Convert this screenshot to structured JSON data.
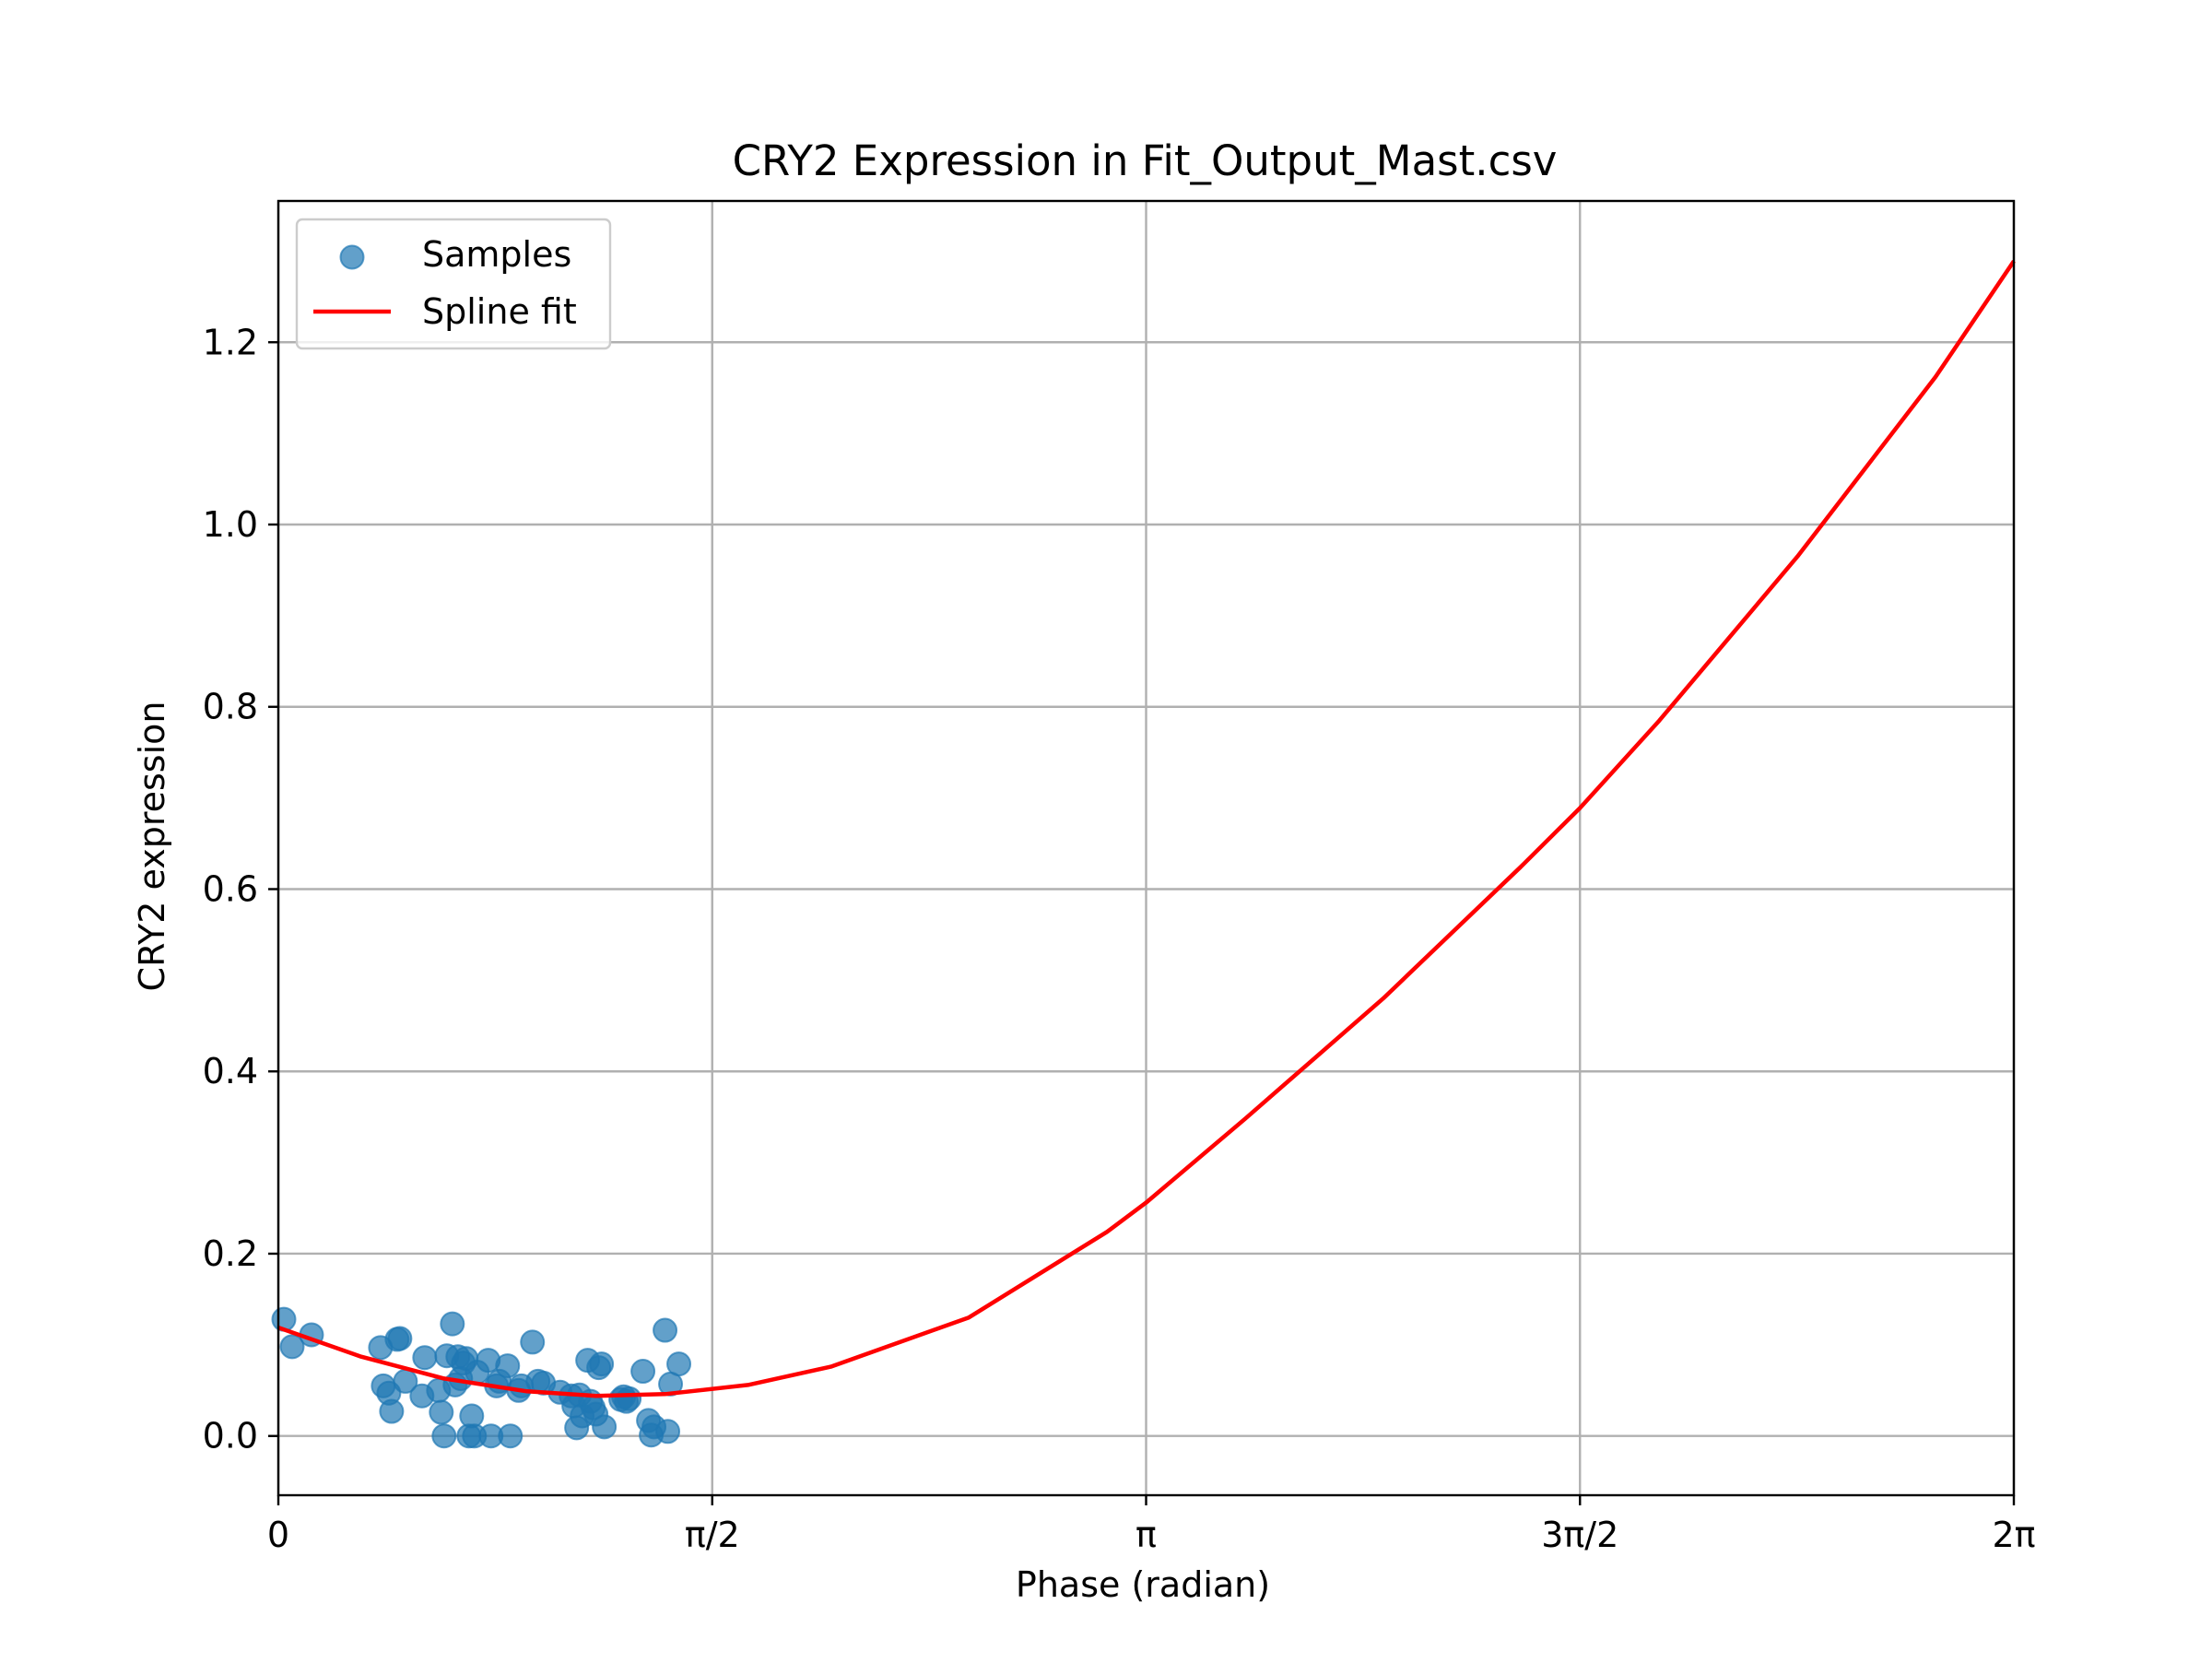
{
  "chart_data": {
    "type": "scatter",
    "title": "CRY2 Expression in Fit_Output_Mast.csv",
    "xlabel": "Phase (radian)",
    "ylabel": "CRY2 expression",
    "xlim": [
      0,
      6.2832
    ],
    "ylim": [
      -0.065,
      1.355
    ],
    "grid": true,
    "legend_position": "upper-left",
    "x_ticks": [
      {
        "value": 0,
        "label": "0"
      },
      {
        "value": 1.5708,
        "label": "π/2"
      },
      {
        "value": 3.1416,
        "label": "π"
      },
      {
        "value": 4.7124,
        "label": "3π/2"
      },
      {
        "value": 6.2832,
        "label": "2π"
      }
    ],
    "y_ticks": [
      {
        "value": 0.0,
        "label": "0.0"
      },
      {
        "value": 0.2,
        "label": "0.2"
      },
      {
        "value": 0.4,
        "label": "0.4"
      },
      {
        "value": 0.6,
        "label": "0.6"
      },
      {
        "value": 0.8,
        "label": "0.8"
      },
      {
        "value": 1.0,
        "label": "1.0"
      },
      {
        "value": 1.2,
        "label": "1.2"
      }
    ],
    "series": [
      {
        "name": "Samples",
        "kind": "scatter",
        "color": "#1f77b4",
        "opacity": 0.7,
        "points": [
          [
            0.02,
            0.128
          ],
          [
            0.05,
            0.098
          ],
          [
            0.12,
            0.111
          ],
          [
            0.37,
            0.097
          ],
          [
            0.38,
            0.055
          ],
          [
            0.4,
            0.047
          ],
          [
            0.41,
            0.027
          ],
          [
            0.43,
            0.106
          ],
          [
            0.44,
            0.107
          ],
          [
            0.46,
            0.06
          ],
          [
            0.52,
            0.044
          ],
          [
            0.53,
            0.086
          ],
          [
            0.58,
            0.05
          ],
          [
            0.59,
            0.026
          ],
          [
            0.6,
            0.0
          ],
          [
            0.61,
            0.088
          ],
          [
            0.63,
            0.123
          ],
          [
            0.64,
            0.056
          ],
          [
            0.65,
            0.087
          ],
          [
            0.66,
            0.063
          ],
          [
            0.67,
            0.08
          ],
          [
            0.68,
            0.085
          ],
          [
            0.69,
            0.0
          ],
          [
            0.7,
            0.022
          ],
          [
            0.71,
            0.0
          ],
          [
            0.72,
            0.07
          ],
          [
            0.76,
            0.083
          ],
          [
            0.77,
            0.0
          ],
          [
            0.79,
            0.055
          ],
          [
            0.8,
            0.06
          ],
          [
            0.83,
            0.077
          ],
          [
            0.84,
            0.0
          ],
          [
            0.87,
            0.05
          ],
          [
            0.88,
            0.055
          ],
          [
            0.92,
            0.103
          ],
          [
            0.94,
            0.06
          ],
          [
            0.96,
            0.058
          ],
          [
            1.02,
            0.048
          ],
          [
            1.06,
            0.044
          ],
          [
            1.07,
            0.033
          ],
          [
            1.08,
            0.009
          ],
          [
            1.09,
            0.045
          ],
          [
            1.1,
            0.022
          ],
          [
            1.12,
            0.083
          ],
          [
            1.13,
            0.038
          ],
          [
            1.14,
            0.031
          ],
          [
            1.15,
            0.024
          ],
          [
            1.16,
            0.075
          ],
          [
            1.17,
            0.079
          ],
          [
            1.18,
            0.01
          ],
          [
            1.24,
            0.04
          ],
          [
            1.25,
            0.043
          ],
          [
            1.26,
            0.038
          ],
          [
            1.27,
            0.041
          ],
          [
            1.32,
            0.071
          ],
          [
            1.34,
            0.017
          ],
          [
            1.35,
            0.001
          ],
          [
            1.36,
            0.01
          ],
          [
            1.4,
            0.116
          ],
          [
            1.41,
            0.005
          ],
          [
            1.42,
            0.057
          ],
          [
            1.45,
            0.079
          ]
        ]
      },
      {
        "name": "Spline fit",
        "kind": "line",
        "color": "#ff0000",
        "points": [
          [
            0.0,
            0.119
          ],
          [
            0.3,
            0.087
          ],
          [
            0.6,
            0.063
          ],
          [
            0.9,
            0.049
          ],
          [
            1.15,
            0.044
          ],
          [
            1.4,
            0.046
          ],
          [
            1.7,
            0.056
          ],
          [
            2.0,
            0.076
          ],
          [
            2.5,
            0.13
          ],
          [
            3.0,
            0.224
          ],
          [
            3.1416,
            0.256
          ],
          [
            3.5,
            0.348
          ],
          [
            4.0,
            0.48
          ],
          [
            4.5,
            0.625
          ],
          [
            4.7124,
            0.689
          ],
          [
            5.0,
            0.785
          ],
          [
            5.5,
            0.965
          ],
          [
            6.0,
            1.162
          ],
          [
            6.2832,
            1.289
          ]
        ]
      }
    ]
  }
}
